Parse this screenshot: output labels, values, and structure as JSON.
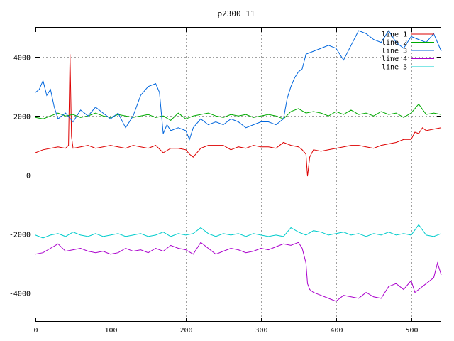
{
  "chart_data": {
    "type": "line",
    "title": "p2300_11",
    "xlabel": "",
    "ylabel": "",
    "xlim": [
      0,
      540
    ],
    "ylim": [
      -5000,
      5000
    ],
    "xticks": [
      0,
      100,
      200,
      300,
      400,
      500
    ],
    "yticks": [
      -4000,
      -2000,
      0,
      2000,
      4000
    ],
    "grid": true,
    "legend_position": "top-right",
    "series": [
      {
        "name": "line 1",
        "color": "#dd0000",
        "x": [
          0,
          10,
          20,
          30,
          40,
          44,
          46,
          48,
          50,
          60,
          70,
          80,
          90,
          100,
          110,
          120,
          130,
          140,
          150,
          160,
          170,
          180,
          190,
          200,
          205,
          210,
          220,
          230,
          240,
          250,
          260,
          270,
          280,
          290,
          300,
          310,
          320,
          330,
          340,
          350,
          355,
          360,
          362,
          365,
          370,
          380,
          390,
          400,
          410,
          420,
          430,
          440,
          450,
          460,
          470,
          480,
          490,
          500,
          505,
          510,
          515,
          520,
          530,
          540
        ],
        "y": [
          750,
          850,
          900,
          950,
          900,
          1000,
          4100,
          1300,
          900,
          950,
          1000,
          900,
          950,
          1000,
          950,
          900,
          1000,
          950,
          900,
          1000,
          750,
          900,
          900,
          850,
          700,
          600,
          900,
          1000,
          1000,
          1000,
          850,
          950,
          900,
          1000,
          950,
          950,
          900,
          1100,
          1000,
          950,
          850,
          700,
          -50,
          600,
          850,
          800,
          850,
          900,
          950,
          1000,
          1000,
          950,
          900,
          1000,
          1050,
          1100,
          1200,
          1200,
          1450,
          1400,
          1600,
          1500,
          1550,
          1600
        ]
      },
      {
        "name": "line 2",
        "color": "#00aa00",
        "x": [
          0,
          10,
          20,
          30,
          40,
          50,
          60,
          70,
          80,
          90,
          100,
          110,
          120,
          130,
          140,
          150,
          160,
          170,
          180,
          190,
          200,
          210,
          220,
          230,
          240,
          250,
          260,
          270,
          280,
          290,
          300,
          310,
          320,
          330,
          340,
          350,
          360,
          370,
          380,
          390,
          400,
          410,
          420,
          430,
          440,
          450,
          460,
          470,
          480,
          490,
          500,
          510,
          520,
          530,
          540
        ],
        "y": [
          1950,
          1900,
          2000,
          2100,
          2000,
          2050,
          1950,
          2000,
          2100,
          2000,
          1950,
          2050,
          2000,
          1950,
          2000,
          2050,
          1950,
          2000,
          1850,
          2100,
          1900,
          2000,
          2050,
          2100,
          2000,
          1950,
          2050,
          2000,
          2050,
          1950,
          2000,
          2050,
          2000,
          1900,
          2150,
          2250,
          2100,
          2150,
          2100,
          2000,
          2150,
          2050,
          2200,
          2050,
          2100,
          2000,
          2150,
          2050,
          2100,
          1950,
          2100,
          2400,
          2050,
          2100,
          2050
        ]
      },
      {
        "name": "line 3",
        "color": "#0066dd",
        "x": [
          0,
          5,
          10,
          15,
          20,
          25,
          30,
          40,
          50,
          60,
          70,
          80,
          90,
          100,
          110,
          120,
          130,
          140,
          150,
          160,
          165,
          170,
          175,
          180,
          190,
          200,
          205,
          210,
          220,
          230,
          240,
          250,
          260,
          270,
          280,
          290,
          300,
          310,
          320,
          330,
          335,
          340,
          345,
          350,
          355,
          360,
          370,
          380,
          390,
          400,
          410,
          420,
          430,
          440,
          450,
          460,
          470,
          480,
          490,
          500,
          510,
          520,
          530,
          540
        ],
        "y": [
          2800,
          2900,
          3200,
          2700,
          2900,
          2300,
          1900,
          2100,
          1800,
          2200,
          2000,
          2300,
          2100,
          1900,
          2100,
          1600,
          2000,
          2700,
          3000,
          3100,
          2800,
          1400,
          1700,
          1500,
          1600,
          1500,
          1200,
          1600,
          1900,
          1700,
          1800,
          1700,
          1900,
          1800,
          1600,
          1700,
          1800,
          1800,
          1700,
          1900,
          2600,
          3000,
          3300,
          3500,
          3600,
          4100,
          4200,
          4300,
          4400,
          4300,
          3900,
          4400,
          4900,
          4800,
          4600,
          4500,
          4900,
          4500,
          4300,
          4700,
          4600,
          4500,
          4800,
          4200
        ]
      },
      {
        "name": "line 4",
        "color": "#aa00cc",
        "x": [
          0,
          10,
          20,
          30,
          40,
          50,
          60,
          70,
          80,
          90,
          100,
          110,
          120,
          130,
          140,
          150,
          160,
          170,
          180,
          190,
          200,
          210,
          220,
          230,
          240,
          250,
          260,
          270,
          280,
          290,
          300,
          310,
          320,
          330,
          340,
          350,
          355,
          360,
          362,
          365,
          370,
          380,
          390,
          400,
          410,
          420,
          430,
          440,
          450,
          460,
          470,
          480,
          490,
          500,
          505,
          510,
          520,
          530,
          535,
          540
        ],
        "y": [
          -2700,
          -2650,
          -2500,
          -2350,
          -2600,
          -2550,
          -2500,
          -2600,
          -2650,
          -2600,
          -2700,
          -2650,
          -2500,
          -2600,
          -2550,
          -2650,
          -2500,
          -2600,
          -2400,
          -2500,
          -2550,
          -2700,
          -2300,
          -2500,
          -2700,
          -2600,
          -2500,
          -2550,
          -2650,
          -2600,
          -2500,
          -2550,
          -2450,
          -2350,
          -2400,
          -2300,
          -2500,
          -3000,
          -3700,
          -3900,
          -4000,
          -4100,
          -4200,
          -4300,
          -4100,
          -4150,
          -4200,
          -4000,
          -4150,
          -4200,
          -3800,
          -3700,
          -3900,
          -3600,
          -4000,
          -3900,
          -3700,
          -3500,
          -3000,
          -3400
        ]
      },
      {
        "name": "line 5",
        "color": "#00cccc",
        "x": [
          0,
          10,
          20,
          30,
          40,
          50,
          60,
          70,
          80,
          90,
          100,
          110,
          120,
          130,
          140,
          150,
          160,
          170,
          180,
          190,
          200,
          210,
          220,
          230,
          240,
          250,
          260,
          270,
          280,
          290,
          300,
          310,
          320,
          330,
          340,
          350,
          360,
          370,
          380,
          390,
          400,
          410,
          420,
          430,
          440,
          450,
          460,
          470,
          480,
          490,
          500,
          510,
          520,
          530,
          540
        ],
        "y": [
          -2050,
          -2150,
          -2050,
          -2000,
          -2100,
          -1950,
          -2050,
          -2100,
          -2000,
          -2100,
          -2050,
          -2000,
          -2100,
          -2050,
          -2000,
          -2100,
          -2050,
          -1950,
          -2100,
          -2000,
          -2050,
          -2000,
          -1800,
          -2000,
          -2100,
          -2000,
          -2050,
          -2000,
          -2100,
          -2000,
          -2050,
          -2100,
          -2050,
          -2100,
          -1800,
          -1950,
          -2050,
          -1900,
          -1950,
          -2050,
          -2000,
          -1950,
          -2050,
          -2000,
          -2100,
          -2000,
          -2050,
          -1950,
          -2050,
          -2000,
          -2050,
          -1700,
          -2050,
          -2100,
          -2000
        ]
      }
    ]
  }
}
